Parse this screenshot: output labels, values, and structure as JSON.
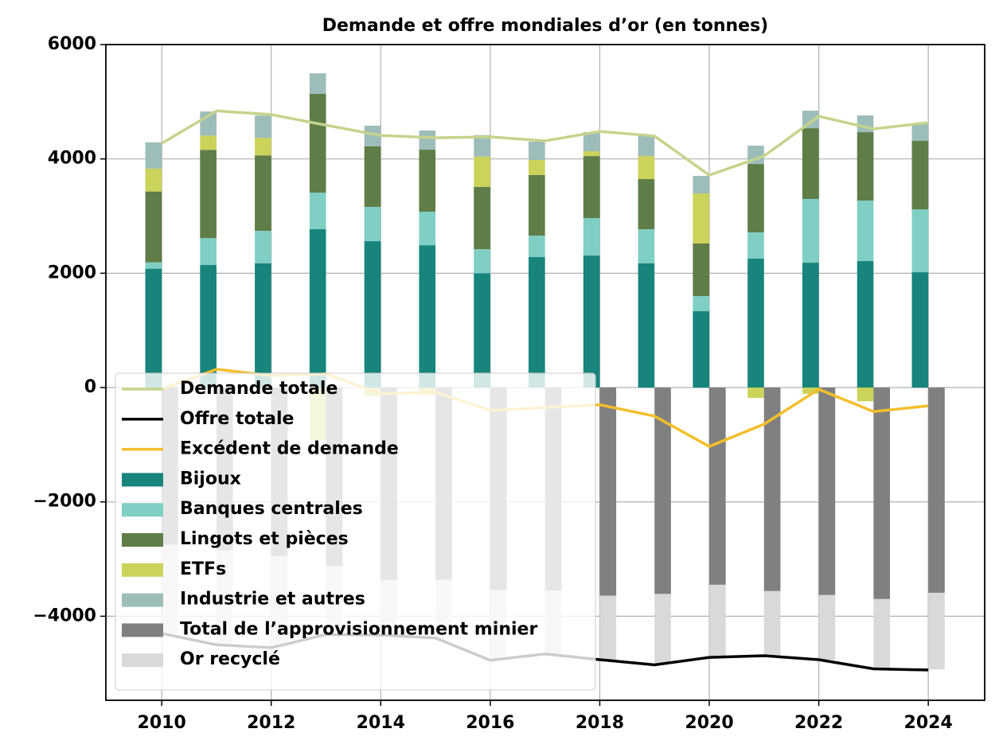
{
  "chart_data": {
    "type": "bar",
    "title": "Demande et offre mondiales d’or (en tonnes)",
    "x": [
      2010,
      2011,
      2012,
      2013,
      2014,
      2015,
      2016,
      2017,
      2018,
      2019,
      2020,
      2021,
      2022,
      2023,
      2024
    ],
    "xlim": [
      2008.98,
      2025.03
    ],
    "xticks": [
      2010,
      2012,
      2014,
      2016,
      2018,
      2020,
      2022,
      2024
    ],
    "ylim": [
      -5470,
      6000
    ],
    "yticks": [
      -4000,
      -2000,
      0,
      2000,
      4000,
      6000
    ],
    "grid": true,
    "legend": "lower left",
    "series": [
      {
        "name": "Demande totale",
        "type": "line",
        "color": "#c5d48c",
        "values": [
          4270,
          4840,
          4775,
          4590,
          4410,
          4370,
          4385,
          4315,
          4480,
          4400,
          3715,
          4050,
          4745,
          4524,
          4635
        ]
      },
      {
        "name": "Offre totale",
        "type": "line",
        "color": "#000000",
        "values": [
          -4300,
          -4500,
          -4550,
          -4320,
          -4330,
          -4380,
          -4770,
          -4660,
          -4760,
          -4850,
          -4720,
          -4690,
          -4760,
          -4920,
          -4940
        ]
      },
      {
        "name": "Excédent de demande",
        "type": "line",
        "color": "#f4be2c",
        "values": [
          -30,
          320,
          210,
          240,
          -110,
          -80,
          -400,
          -350,
          -300,
          -500,
          -1030,
          -640,
          -30,
          -420,
          -320
        ]
      },
      {
        "name": "Bijoux",
        "type": "bar",
        "stack": "demand",
        "color": "#17857c",
        "values": [
          2080,
          2144,
          2172,
          2770,
          2561,
          2490,
          2000,
          2283,
          2310,
          2172,
          1336,
          2255,
          2185,
          2213,
          2018
        ]
      },
      {
        "name": "Banques centrales",
        "type": "bar",
        "stack": "demand",
        "color": "#80cfc4",
        "values": [
          110,
          470,
          570,
          640,
          600,
          586,
          420,
          375,
          655,
          598,
          264,
          459,
          1115,
          1058,
          1100
        ]
      },
      {
        "name": "Lingots et pièces",
        "type": "bar",
        "stack": "demand",
        "color": "#5f7d47",
        "values": [
          1240,
          1545,
          1320,
          1727,
          1060,
          1086,
          1090,
          1060,
          1085,
          877,
          920,
          1197,
          1237,
          1197,
          1197
        ]
      },
      {
        "name": "ETFs",
        "type": "bar",
        "stack": "demand",
        "color": "#cbd35a",
        "values": [
          400,
          250,
          306,
          -920,
          -150,
          -130,
          530,
          264,
          84,
          403,
          876,
          -180,
          -110,
          -240,
          0
        ]
      },
      {
        "name": "Industrie et autres",
        "type": "bar",
        "stack": "demand",
        "color": "#9dbdba",
        "values": [
          460,
          420,
          390,
          360,
          360,
          334,
          376,
          320,
          334,
          350,
          307,
          320,
          306,
          292,
          306
        ]
      },
      {
        "name": "Total de l’approvisionnement minier",
        "type": "bar",
        "stack": "supply",
        "color": "#808080",
        "values": [
          -2750,
          -2850,
          -2950,
          -3120,
          -3370,
          -3360,
          -3540,
          -3550,
          -3640,
          -3610,
          -3450,
          -3560,
          -3630,
          -3700,
          -3590
        ]
      },
      {
        "name": "Or recyclé",
        "type": "bar",
        "stack": "supply",
        "color": "#d9d9d9",
        "values": [
          -1550,
          -1650,
          -1600,
          -1220,
          -980,
          -1020,
          -1220,
          -1110,
          -1120,
          -1220,
          -1270,
          -1120,
          -1130,
          -1210,
          -1340
        ]
      }
    ]
  }
}
